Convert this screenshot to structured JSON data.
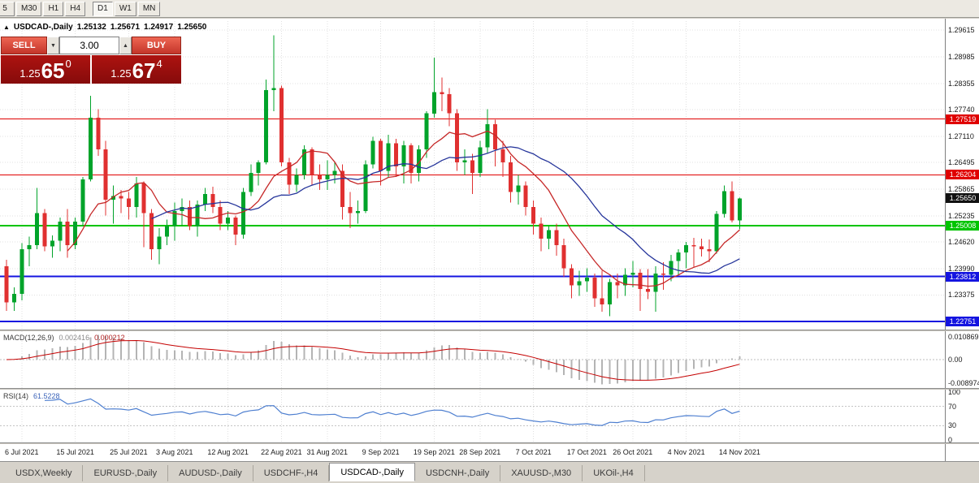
{
  "toolbar": {
    "periods": [
      {
        "label": "5",
        "active": false
      },
      {
        "label": "M30",
        "active": false
      },
      {
        "label": "H1",
        "active": false
      },
      {
        "label": "H4",
        "active": false
      },
      {
        "label": "D1",
        "active": true
      },
      {
        "label": "W1",
        "active": false
      },
      {
        "label": "MN",
        "active": false
      }
    ]
  },
  "chart_header": {
    "collapse_icon": "▲",
    "symbol": "USDCAD-,Daily",
    "open": "1.25132",
    "high": "1.25671",
    "low": "1.24917",
    "close": "1.25650"
  },
  "trade_widget": {
    "sell_label": "SELL",
    "buy_label": "BUY",
    "volume": "3.00",
    "spin_down_icon": "▼",
    "spin_up_icon": "▲",
    "bid": {
      "prefix": "1.25",
      "big": "65",
      "sup": "0"
    },
    "ask": {
      "prefix": "1.25",
      "big": "67",
      "sup": "4"
    }
  },
  "price_scale": {
    "labels": [
      "1.29615",
      "1.28985",
      "1.28355",
      "1.27740",
      "1.27110",
      "1.26495",
      "1.25865",
      "1.25235",
      "1.24620",
      "1.23990",
      "1.23375"
    ],
    "tags": [
      {
        "text": "1.27519",
        "price": 1.27519,
        "color": "#e00000",
        "current": false
      },
      {
        "text": "1.26204",
        "price": 1.26204,
        "color": "#e00000",
        "current": false
      },
      {
        "text": "1.25650",
        "price": 1.2565,
        "color": "#111111",
        "current": true
      },
      {
        "text": "1.25008",
        "price": 1.25008,
        "color": "#00c400",
        "current": false
      },
      {
        "text": "1.23812",
        "price": 1.23812,
        "color": "#1414e0",
        "current": false
      },
      {
        "text": "1.22751",
        "price": 1.22751,
        "color": "#1414e0",
        "current": false
      }
    ]
  },
  "macd_panel": {
    "title": "MACD(12,26,9)",
    "value1": "0.002416",
    "value2": "0.000212",
    "scale": {
      "top": "0.010869",
      "zero": "0.00",
      "bottom": "-0.008974"
    }
  },
  "rsi_panel": {
    "title": "RSI(14)",
    "value": "61.5228",
    "scale": [
      "100",
      "70",
      "30",
      "0"
    ],
    "levels": [
      70,
      30
    ]
  },
  "time_axis": {
    "ticks": [
      {
        "label": "6 Jul 2021",
        "index": 2
      },
      {
        "label": "15 Jul 2021",
        "index": 9
      },
      {
        "label": "25 Jul 2021",
        "index": 16
      },
      {
        "label": "3 Aug 2021",
        "index": 22
      },
      {
        "label": "12 Aug 2021",
        "index": 29
      },
      {
        "label": "22 Aug 2021",
        "index": 36
      },
      {
        "label": "31 Aug 2021",
        "index": 42
      },
      {
        "label": "9 Sep 2021",
        "index": 49
      },
      {
        "label": "19 Sep 2021",
        "index": 56
      },
      {
        "label": "28 Sep 2021",
        "index": 62
      },
      {
        "label": "7 Oct 2021",
        "index": 69
      },
      {
        "label": "17 Oct 2021",
        "index": 76
      },
      {
        "label": "26 Oct 2021",
        "index": 82
      },
      {
        "label": "4 Nov 2021",
        "index": 89
      },
      {
        "label": "14 Nov 2021",
        "index": 96
      }
    ]
  },
  "tabs": [
    {
      "label": "USDX,Weekly",
      "active": false
    },
    {
      "label": "EURUSD-,Daily",
      "active": false
    },
    {
      "label": "AUDUSD-,Daily",
      "active": false
    },
    {
      "label": "USDCHF-,H4",
      "active": false
    },
    {
      "label": "USDCAD-,Daily",
      "active": true
    },
    {
      "label": "USDCNH-,Daily",
      "active": false
    },
    {
      "label": "XAUUSD-,M30",
      "active": false
    },
    {
      "label": "UKOil-,H4",
      "active": false
    }
  ],
  "chart_data": {
    "type": "candlestick",
    "symbol": "USDCAD",
    "timeframe": "Daily",
    "y_range": [
      1.2256,
      1.29824
    ],
    "up_color": "#00a32a",
    "down_color": "#e03030",
    "candles": [
      [
        1.2405,
        1.242,
        1.23,
        1.232
      ],
      [
        1.232,
        1.2355,
        1.23,
        1.234
      ],
      [
        1.234,
        1.246,
        1.2325,
        1.2445
      ],
      [
        1.2445,
        1.2475,
        1.2405,
        1.2455
      ],
      [
        1.2455,
        1.259,
        1.2445,
        1.253
      ],
      [
        1.253,
        1.254,
        1.244,
        1.2452
      ],
      [
        1.2452,
        1.2478,
        1.2425,
        1.2465
      ],
      [
        1.2465,
        1.252,
        1.244,
        1.251
      ],
      [
        1.251,
        1.254,
        1.2425,
        1.2455
      ],
      [
        1.2455,
        1.252,
        1.2445,
        1.251
      ],
      [
        1.251,
        1.2615,
        1.25,
        1.261
      ],
      [
        1.261,
        1.2807,
        1.2605,
        1.2755
      ],
      [
        1.2755,
        1.2775,
        1.2665,
        1.268
      ],
      [
        1.268,
        1.27,
        1.2525,
        1.2562
      ],
      [
        1.2562,
        1.2595,
        1.2505,
        1.257
      ],
      [
        1.257,
        1.2585,
        1.253,
        1.2565
      ],
      [
        1.2565,
        1.258,
        1.2515,
        1.2545
      ],
      [
        1.2545,
        1.2615,
        1.252,
        1.26
      ],
      [
        1.26,
        1.2605,
        1.245,
        1.253
      ],
      [
        1.253,
        1.254,
        1.242,
        1.2445
      ],
      [
        1.2445,
        1.2495,
        1.241,
        1.2475
      ],
      [
        1.2475,
        1.2515,
        1.2455,
        1.25
      ],
      [
        1.25,
        1.2555,
        1.2465,
        1.2535
      ],
      [
        1.2535,
        1.2565,
        1.25,
        1.2545
      ],
      [
        1.2545,
        1.256,
        1.249,
        1.25
      ],
      [
        1.25,
        1.256,
        1.2475,
        1.255
      ],
      [
        1.255,
        1.259,
        1.2535,
        1.2575
      ],
      [
        1.2575,
        1.2592,
        1.253,
        1.2545
      ],
      [
        1.2545,
        1.256,
        1.249,
        1.2505
      ],
      [
        1.2505,
        1.2535,
        1.249,
        1.252
      ],
      [
        1.252,
        1.2525,
        1.2455,
        1.248
      ],
      [
        1.248,
        1.259,
        1.247,
        1.258
      ],
      [
        1.258,
        1.2645,
        1.257,
        1.2625
      ],
      [
        1.2625,
        1.2655,
        1.2595,
        1.265
      ],
      [
        1.265,
        1.2845,
        1.2645,
        1.282
      ],
      [
        1.282,
        1.2949,
        1.277,
        1.2825
      ],
      [
        1.2825,
        1.283,
        1.264,
        1.265
      ],
      [
        1.265,
        1.266,
        1.2575,
        1.2597
      ],
      [
        1.2597,
        1.2635,
        1.258,
        1.262
      ],
      [
        1.262,
        1.269,
        1.261,
        1.268
      ],
      [
        1.268,
        1.2685,
        1.2595,
        1.262
      ],
      [
        1.262,
        1.2645,
        1.2585,
        1.261
      ],
      [
        1.261,
        1.2655,
        1.2585,
        1.262
      ],
      [
        1.262,
        1.265,
        1.26,
        1.263
      ],
      [
        1.263,
        1.2645,
        1.2515,
        1.2545
      ],
      [
        1.2545,
        1.258,
        1.2495,
        1.253
      ],
      [
        1.253,
        1.256,
        1.2505,
        1.2535
      ],
      [
        1.2535,
        1.2655,
        1.253,
        1.2645
      ],
      [
        1.2645,
        1.271,
        1.2635,
        1.27
      ],
      [
        1.27,
        1.2705,
        1.2595,
        1.263
      ],
      [
        1.263,
        1.2715,
        1.2615,
        1.2695
      ],
      [
        1.2695,
        1.2705,
        1.2615,
        1.264
      ],
      [
        1.264,
        1.27,
        1.26,
        1.269
      ],
      [
        1.269,
        1.2695,
        1.26,
        1.2625
      ],
      [
        1.2625,
        1.269,
        1.2605,
        1.268
      ],
      [
        1.268,
        1.277,
        1.266,
        1.2765
      ],
      [
        1.2765,
        1.2896,
        1.2755,
        1.2815
      ],
      [
        1.2815,
        1.285,
        1.277,
        1.281
      ],
      [
        1.281,
        1.2825,
        1.2735,
        1.2765
      ],
      [
        1.2765,
        1.2775,
        1.263,
        1.265
      ],
      [
        1.265,
        1.268,
        1.262,
        1.2655
      ],
      [
        1.2655,
        1.267,
        1.2575,
        1.2625
      ],
      [
        1.2625,
        1.27,
        1.2615,
        1.2685
      ],
      [
        1.2685,
        1.2775,
        1.267,
        1.274
      ],
      [
        1.274,
        1.275,
        1.264,
        1.268
      ],
      [
        1.268,
        1.27,
        1.2615,
        1.265
      ],
      [
        1.265,
        1.2665,
        1.2555,
        1.258
      ],
      [
        1.258,
        1.262,
        1.255,
        1.2595
      ],
      [
        1.2595,
        1.2605,
        1.2525,
        1.2545
      ],
      [
        1.2545,
        1.256,
        1.248,
        1.2505
      ],
      [
        1.2505,
        1.252,
        1.244,
        1.247
      ],
      [
        1.247,
        1.25,
        1.2445,
        1.249
      ],
      [
        1.249,
        1.2505,
        1.243,
        1.2455
      ],
      [
        1.2455,
        1.247,
        1.238,
        1.24
      ],
      [
        1.24,
        1.241,
        1.233,
        1.236
      ],
      [
        1.236,
        1.2395,
        1.2335,
        1.237
      ],
      [
        1.237,
        1.24,
        1.2345,
        1.2378
      ],
      [
        1.2378,
        1.2388,
        1.231,
        1.233
      ],
      [
        1.233,
        1.2395,
        1.2298,
        1.2315
      ],
      [
        1.2315,
        1.2375,
        1.2288,
        1.2368
      ],
      [
        1.2368,
        1.2388,
        1.233,
        1.236
      ],
      [
        1.236,
        1.24,
        1.2335,
        1.2385
      ],
      [
        1.2385,
        1.2418,
        1.2355,
        1.239
      ],
      [
        1.239,
        1.2398,
        1.23,
        1.2352
      ],
      [
        1.2352,
        1.2398,
        1.2328,
        1.2345
      ],
      [
        1.2345,
        1.2405,
        1.2298,
        1.2388
      ],
      [
        1.2388,
        1.2415,
        1.235,
        1.2385
      ],
      [
        1.2385,
        1.2432,
        1.237,
        1.2418
      ],
      [
        1.2418,
        1.2445,
        1.2385,
        1.2438
      ],
      [
        1.2438,
        1.2462,
        1.24,
        1.2455
      ],
      [
        1.2455,
        1.2472,
        1.2402,
        1.2452
      ],
      [
        1.2452,
        1.247,
        1.2428,
        1.2445
      ],
      [
        1.2445,
        1.2468,
        1.2415,
        1.244
      ],
      [
        1.244,
        1.2535,
        1.2435,
        1.2528
      ],
      [
        1.2528,
        1.2595,
        1.252,
        1.2582
      ],
      [
        1.2582,
        1.2605,
        1.2508,
        1.2513
      ],
      [
        1.25132,
        1.25671,
        1.24917,
        1.2565
      ]
    ],
    "overlays": [
      {
        "name": "ma-fast-line",
        "type": "sma",
        "period": 9,
        "color": "#c62828"
      },
      {
        "name": "ma-slow-line",
        "type": "sma",
        "period": 20,
        "color": "#26359b"
      }
    ],
    "hlines": [
      {
        "price": 1.27519,
        "color": "#e00000",
        "width": 1
      },
      {
        "price": 1.26204,
        "color": "#e00000",
        "width": 1
      },
      {
        "price": 1.25008,
        "color": "#00c400",
        "width": 2
      },
      {
        "price": 1.23812,
        "color": "#1414e0",
        "width": 2
      },
      {
        "price": 1.22751,
        "color": "#1414e0",
        "width": 2
      }
    ],
    "indicators": [
      {
        "type": "macd",
        "fast": 12,
        "slow": 26,
        "signal": 9,
        "histogram_color": "#b4b4b4",
        "signal_color": "#c40000"
      },
      {
        "type": "rsi",
        "period": 14,
        "color": "#4e7fd0",
        "levels": [
          70,
          30
        ]
      }
    ]
  }
}
